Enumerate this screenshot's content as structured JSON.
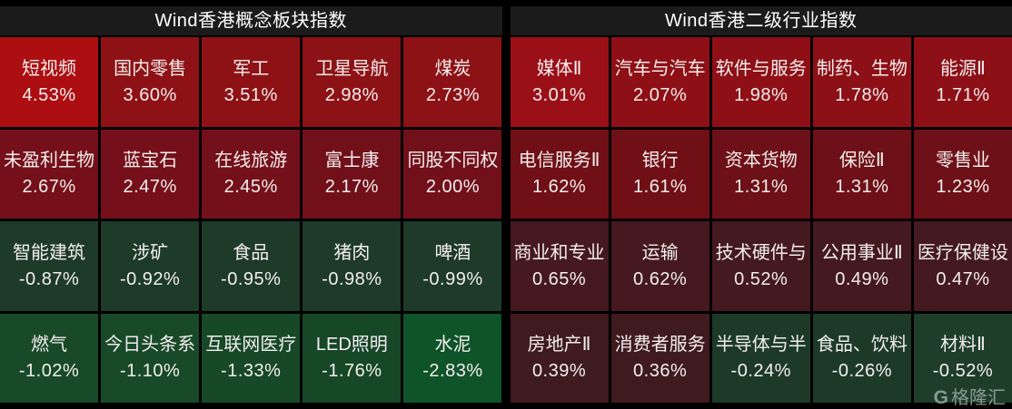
{
  "theme": {
    "background": "#000000",
    "header_bg": "#1b1b1b",
    "header_text": "#ffffff",
    "tile_text": "#f2eeee",
    "watermark_color": "#afb7b7"
  },
  "watermark": {
    "logo": "G",
    "brand": "格隆汇"
  },
  "chart_data": [
    {
      "type": "heatmap",
      "title": "Wind香港概念板块指数",
      "rows": 4,
      "cols": 5,
      "tiles": [
        {
          "name": "短视频",
          "change_pct": 4.53,
          "label": "4.53%",
          "color": "#ac0e11"
        },
        {
          "name": "国内零售",
          "change_pct": 3.6,
          "label": "3.60%",
          "color": "#8e1215"
        },
        {
          "name": "军工",
          "change_pct": 3.51,
          "label": "3.51%",
          "color": "#8e1215"
        },
        {
          "name": "卫星导航",
          "change_pct": 2.98,
          "label": "2.98%",
          "color": "#8d1216"
        },
        {
          "name": "煤炭",
          "change_pct": 2.73,
          "label": "2.73%",
          "color": "#8d1216"
        },
        {
          "name": "未盈利生物",
          "change_pct": 2.67,
          "label": "2.67%",
          "color": "#75101a"
        },
        {
          "name": "蓝宝石",
          "change_pct": 2.47,
          "label": "2.47%",
          "color": "#75101a"
        },
        {
          "name": "在线旅游",
          "change_pct": 2.45,
          "label": "2.45%",
          "color": "#74101a"
        },
        {
          "name": "富士康",
          "change_pct": 2.17,
          "label": "2.17%",
          "color": "#72101a"
        },
        {
          "name": "同股不同权",
          "change_pct": 2.0,
          "label": "2.00%",
          "color": "#72101a"
        },
        {
          "name": "智能建筑",
          "change_pct": -0.87,
          "label": "-0.87%",
          "color": "#1e3a29"
        },
        {
          "name": "涉矿",
          "change_pct": -0.92,
          "label": "-0.92%",
          "color": "#1e3a29"
        },
        {
          "name": "食品",
          "change_pct": -0.95,
          "label": "-0.95%",
          "color": "#1e3a29"
        },
        {
          "name": "猪肉",
          "change_pct": -0.98,
          "label": "-0.98%",
          "color": "#1e3a29"
        },
        {
          "name": "啤酒",
          "change_pct": -0.99,
          "label": "-0.99%",
          "color": "#1e3a29"
        },
        {
          "name": "燃气",
          "change_pct": -1.02,
          "label": "-1.02%",
          "color": "#184928"
        },
        {
          "name": "今日头条系",
          "change_pct": -1.1,
          "label": "-1.10%",
          "color": "#184928"
        },
        {
          "name": "互联网医疗",
          "change_pct": -1.33,
          "label": "-1.33%",
          "color": "#174827"
        },
        {
          "name": "LED照明",
          "change_pct": -1.76,
          "label": "-1.76%",
          "color": "#164727"
        },
        {
          "name": "水泥",
          "change_pct": -2.83,
          "label": "-2.83%",
          "color": "#0f5329"
        }
      ]
    },
    {
      "type": "heatmap",
      "title": "Wind香港二级行业指数",
      "rows": 4,
      "cols": 5,
      "tiles": [
        {
          "name": "媒体Ⅱ",
          "change_pct": 3.01,
          "label": "3.01%",
          "color": "#9a1016"
        },
        {
          "name": "汽车与汽车",
          "change_pct": 2.07,
          "label": "2.07%",
          "color": "#8e1016"
        },
        {
          "name": "软件与服务",
          "change_pct": 1.98,
          "label": "1.98%",
          "color": "#8e1016"
        },
        {
          "name": "制药、生物",
          "change_pct": 1.78,
          "label": "1.78%",
          "color": "#8d1016"
        },
        {
          "name": "能源Ⅱ",
          "change_pct": 1.71,
          "label": "1.71%",
          "color": "#8d1016"
        },
        {
          "name": "电信服务Ⅱ",
          "change_pct": 1.62,
          "label": "1.62%",
          "color": "#701016"
        },
        {
          "name": "银行",
          "change_pct": 1.61,
          "label": "1.61%",
          "color": "#701016"
        },
        {
          "name": "资本货物",
          "change_pct": 1.31,
          "label": "1.31%",
          "color": "#6e1017"
        },
        {
          "name": "保险Ⅱ",
          "change_pct": 1.31,
          "label": "1.31%",
          "color": "#6e1017"
        },
        {
          "name": "零售业",
          "change_pct": 1.23,
          "label": "1.23%",
          "color": "#6e1017"
        },
        {
          "name": "商业和专业",
          "change_pct": 0.65,
          "label": "0.65%",
          "color": "#45191f"
        },
        {
          "name": "运输",
          "change_pct": 0.62,
          "label": "0.62%",
          "color": "#45191f"
        },
        {
          "name": "技术硬件与",
          "change_pct": 0.52,
          "label": "0.52%",
          "color": "#44191f"
        },
        {
          "name": "公用事业Ⅱ",
          "change_pct": 0.49,
          "label": "0.49%",
          "color": "#44191f"
        },
        {
          "name": "医疗保健设",
          "change_pct": 0.47,
          "label": "0.47%",
          "color": "#44191f"
        },
        {
          "name": "房地产Ⅱ",
          "change_pct": 0.39,
          "label": "0.39%",
          "color": "#3f1a1e"
        },
        {
          "name": "消费者服务",
          "change_pct": 0.36,
          "label": "0.36%",
          "color": "#3f1a1e"
        },
        {
          "name": "半导体与半",
          "change_pct": -0.24,
          "label": "-0.24%",
          "color": "#1d3a29"
        },
        {
          "name": "食品、饮料",
          "change_pct": -0.26,
          "label": "-0.26%",
          "color": "#1d3a29"
        },
        {
          "name": "材料Ⅱ",
          "change_pct": -0.52,
          "label": "-0.52%",
          "color": "#1e3e2a"
        }
      ]
    }
  ]
}
